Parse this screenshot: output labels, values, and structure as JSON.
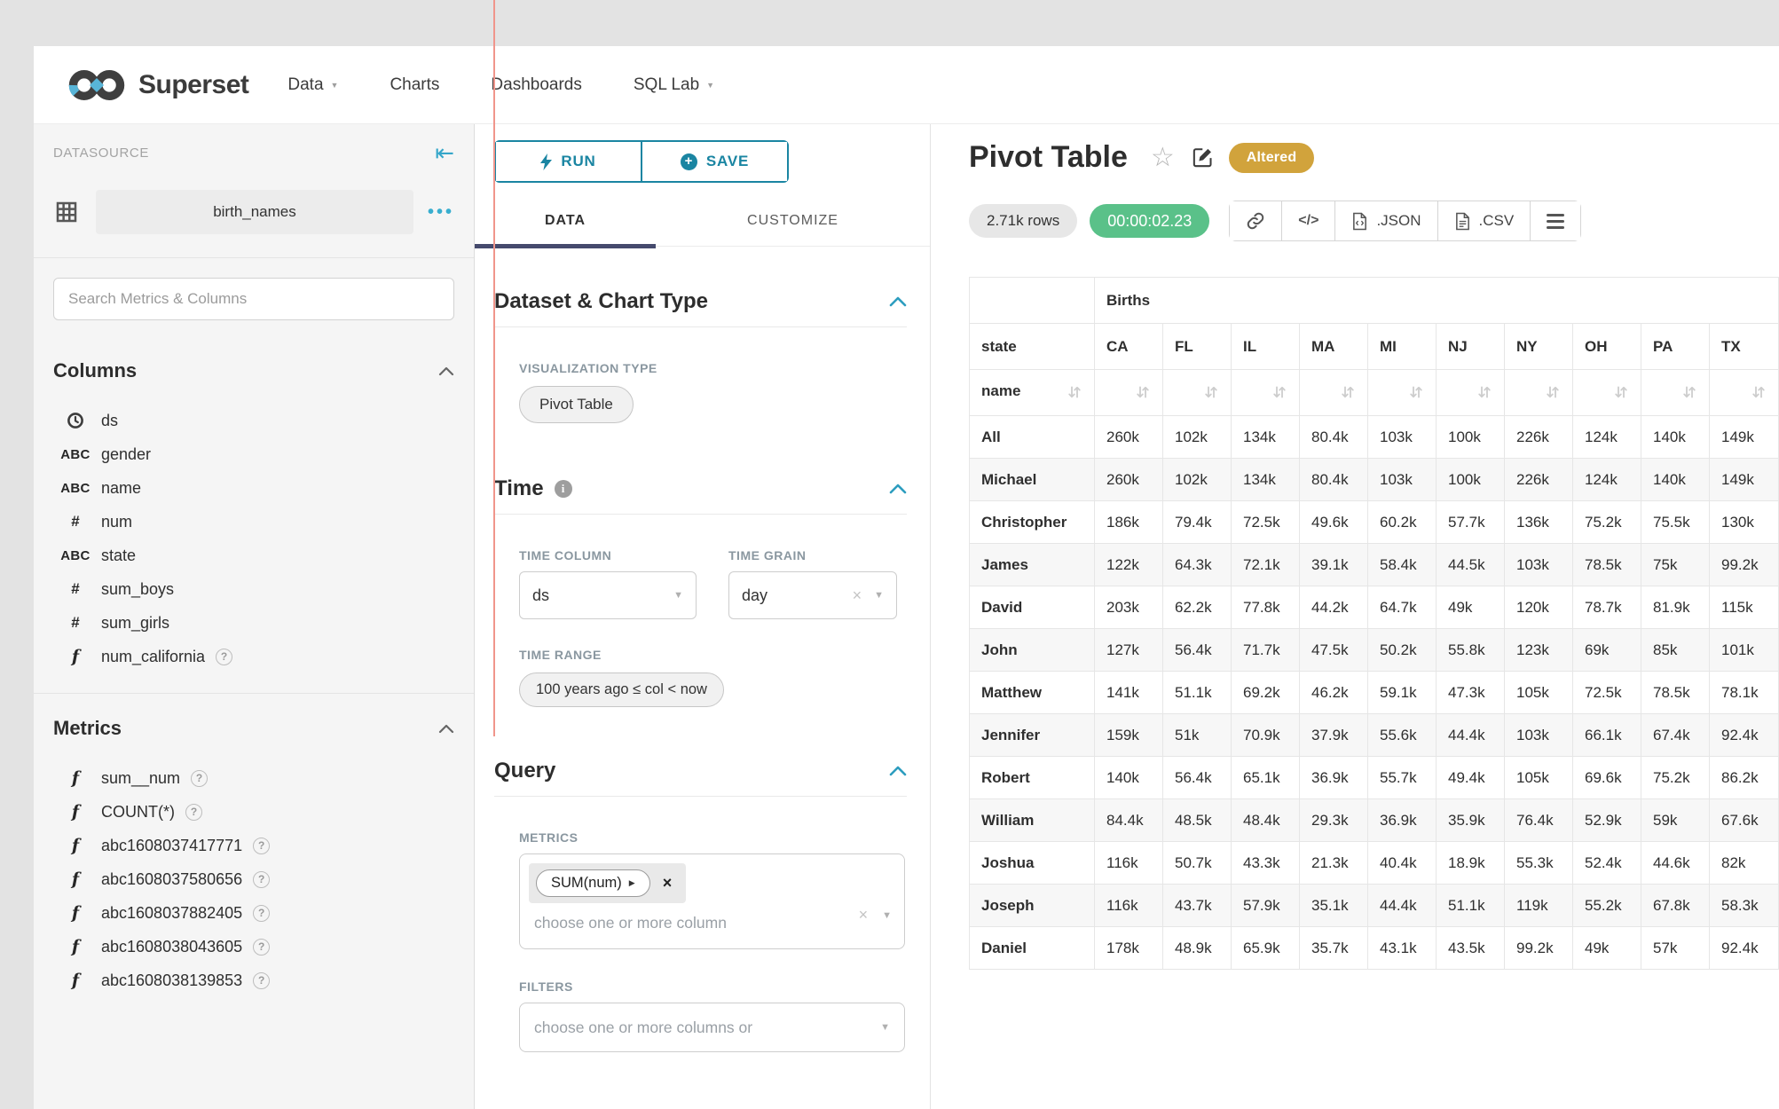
{
  "nav": {
    "brand": "Superset",
    "items": [
      {
        "label": "Data",
        "caret": true
      },
      {
        "label": "Charts",
        "caret": false
      },
      {
        "label": "Dashboards",
        "caret": false
      },
      {
        "label": "SQL Lab",
        "caret": true
      }
    ]
  },
  "datasource": {
    "panel_title": "DATASOURCE",
    "name": "birth_names",
    "search_placeholder": "Search Metrics & Columns",
    "columns": {
      "title": "Columns",
      "items": [
        {
          "icon": "clock",
          "name": "ds",
          "help": false
        },
        {
          "icon": "abc",
          "name": "gender",
          "help": false
        },
        {
          "icon": "abc",
          "name": "name",
          "help": false
        },
        {
          "icon": "hash",
          "name": "num",
          "help": false
        },
        {
          "icon": "abc",
          "name": "state",
          "help": false
        },
        {
          "icon": "hash",
          "name": "sum_boys",
          "help": false
        },
        {
          "icon": "hash",
          "name": "sum_girls",
          "help": false
        },
        {
          "icon": "func",
          "name": "num_california",
          "help": true
        }
      ]
    },
    "metrics": {
      "title": "Metrics",
      "items": [
        {
          "icon": "func",
          "name": "sum__num",
          "help": true
        },
        {
          "icon": "func",
          "name": "COUNT(*)",
          "help": true
        },
        {
          "icon": "func",
          "name": "abc1608037417771",
          "help": true
        },
        {
          "icon": "func",
          "name": "abc1608037580656",
          "help": true
        },
        {
          "icon": "func",
          "name": "abc1608037882405",
          "help": true
        },
        {
          "icon": "func",
          "name": "abc1608038043605",
          "help": true
        },
        {
          "icon": "func",
          "name": "abc1608038139853",
          "help": true
        }
      ]
    }
  },
  "controls": {
    "run_label": "RUN",
    "save_label": "SAVE",
    "tabs": [
      "DATA",
      "CUSTOMIZE"
    ],
    "dataset_section": {
      "title": "Dataset & Chart Type",
      "viz_type_label": "VISUALIZATION TYPE",
      "viz_type": "Pivot Table"
    },
    "time_section": {
      "title": "Time",
      "time_column_label": "TIME COLUMN",
      "time_column": "ds",
      "time_grain_label": "TIME GRAIN",
      "time_grain": "day",
      "time_range_label": "TIME RANGE",
      "time_range": "100 years ago ≤ col < now"
    },
    "query_section": {
      "title": "Query",
      "metrics_label": "METRICS",
      "metric_chip": "SUM(num)",
      "metrics_placeholder": "choose one or more column",
      "filters_label": "FILTERS",
      "filters_placeholder": "choose one or more columns or"
    }
  },
  "result": {
    "title": "Pivot Table",
    "badge": "Altered",
    "rows_count": "2.71k rows",
    "duration": "00:00:02.23",
    "export_json": ".JSON",
    "export_csv": ".CSV"
  },
  "colors": {
    "accent_teal": "#1a85a2",
    "icon_teal": "#38aecf",
    "tab_underline": "#454a6d",
    "altered_gold": "#d1a33c",
    "success_green": "#5ac189",
    "artifact_red": "#f0958b"
  },
  "chart_data": {
    "type": "table",
    "title": "Births",
    "corner_label": "state",
    "row_dim_label": "name",
    "columns": [
      "CA",
      "FL",
      "IL",
      "MA",
      "MI",
      "NJ",
      "NY",
      "OH",
      "PA",
      "TX"
    ],
    "rows": [
      {
        "name": "All",
        "values": [
          "260k",
          "102k",
          "134k",
          "80.4k",
          "103k",
          "100k",
          "226k",
          "124k",
          "140k",
          "149k"
        ]
      },
      {
        "name": "Michael",
        "values": [
          "260k",
          "102k",
          "134k",
          "80.4k",
          "103k",
          "100k",
          "226k",
          "124k",
          "140k",
          "149k"
        ]
      },
      {
        "name": "Christopher",
        "values": [
          "186k",
          "79.4k",
          "72.5k",
          "49.6k",
          "60.2k",
          "57.7k",
          "136k",
          "75.2k",
          "75.5k",
          "130k"
        ]
      },
      {
        "name": "James",
        "values": [
          "122k",
          "64.3k",
          "72.1k",
          "39.1k",
          "58.4k",
          "44.5k",
          "103k",
          "78.5k",
          "75k",
          "99.2k"
        ]
      },
      {
        "name": "David",
        "values": [
          "203k",
          "62.2k",
          "77.8k",
          "44.2k",
          "64.7k",
          "49k",
          "120k",
          "78.7k",
          "81.9k",
          "115k"
        ]
      },
      {
        "name": "John",
        "values": [
          "127k",
          "56.4k",
          "71.7k",
          "47.5k",
          "50.2k",
          "55.8k",
          "123k",
          "69k",
          "85k",
          "101k"
        ]
      },
      {
        "name": "Matthew",
        "values": [
          "141k",
          "51.1k",
          "69.2k",
          "46.2k",
          "59.1k",
          "47.3k",
          "105k",
          "72.5k",
          "78.5k",
          "78.1k"
        ]
      },
      {
        "name": "Jennifer",
        "values": [
          "159k",
          "51k",
          "70.9k",
          "37.9k",
          "55.6k",
          "44.4k",
          "103k",
          "66.1k",
          "67.4k",
          "92.4k"
        ]
      },
      {
        "name": "Robert",
        "values": [
          "140k",
          "56.4k",
          "65.1k",
          "36.9k",
          "55.7k",
          "49.4k",
          "105k",
          "69.6k",
          "75.2k",
          "86.2k"
        ]
      },
      {
        "name": "William",
        "values": [
          "84.4k",
          "48.5k",
          "48.4k",
          "29.3k",
          "36.9k",
          "35.9k",
          "76.4k",
          "52.9k",
          "59k",
          "67.6k"
        ]
      },
      {
        "name": "Joshua",
        "values": [
          "116k",
          "50.7k",
          "43.3k",
          "21.3k",
          "40.4k",
          "18.9k",
          "55.3k",
          "52.4k",
          "44.6k",
          "82k"
        ]
      },
      {
        "name": "Joseph",
        "values": [
          "116k",
          "43.7k",
          "57.9k",
          "35.1k",
          "44.4k",
          "51.1k",
          "119k",
          "55.2k",
          "67.8k",
          "58.3k"
        ]
      },
      {
        "name": "Daniel",
        "values": [
          "178k",
          "48.9k",
          "65.9k",
          "35.7k",
          "43.1k",
          "43.5k",
          "99.2k",
          "49k",
          "57k",
          "92.4k"
        ]
      }
    ]
  }
}
